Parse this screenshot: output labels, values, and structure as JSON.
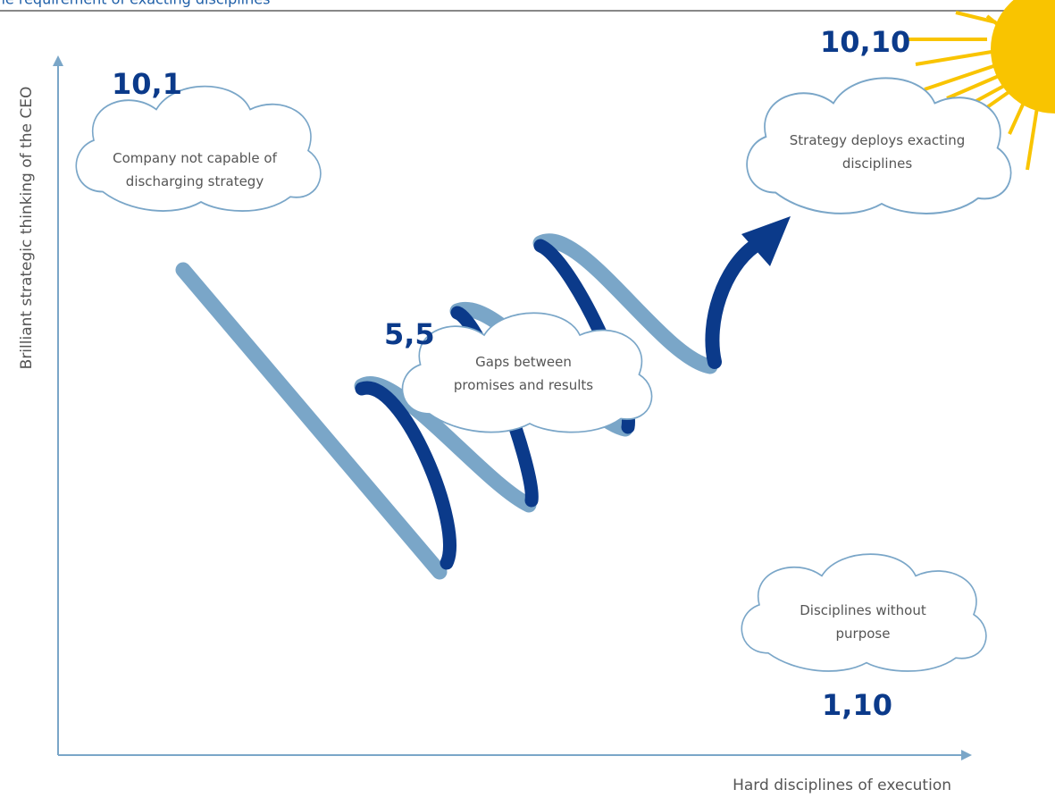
{
  "header": {
    "title": "The requirement of exacting disciplines"
  },
  "axes": {
    "y_label": "Brilliant strategic thinking of the CEO",
    "x_label": "Hard disciplines of execution"
  },
  "nodes": [
    {
      "coord": "10,1",
      "lines": [
        "Company not capable of",
        "discharging strategy"
      ]
    },
    {
      "coord": "10,10",
      "lines": [
        "Strategy deploys exacting",
        "disciplines"
      ]
    },
    {
      "coord": "5,5",
      "lines": [
        "Gaps between",
        "promises and results"
      ]
    },
    {
      "coord": "1,10",
      "lines": [
        "Disciplines without",
        "purpose"
      ]
    }
  ]
}
